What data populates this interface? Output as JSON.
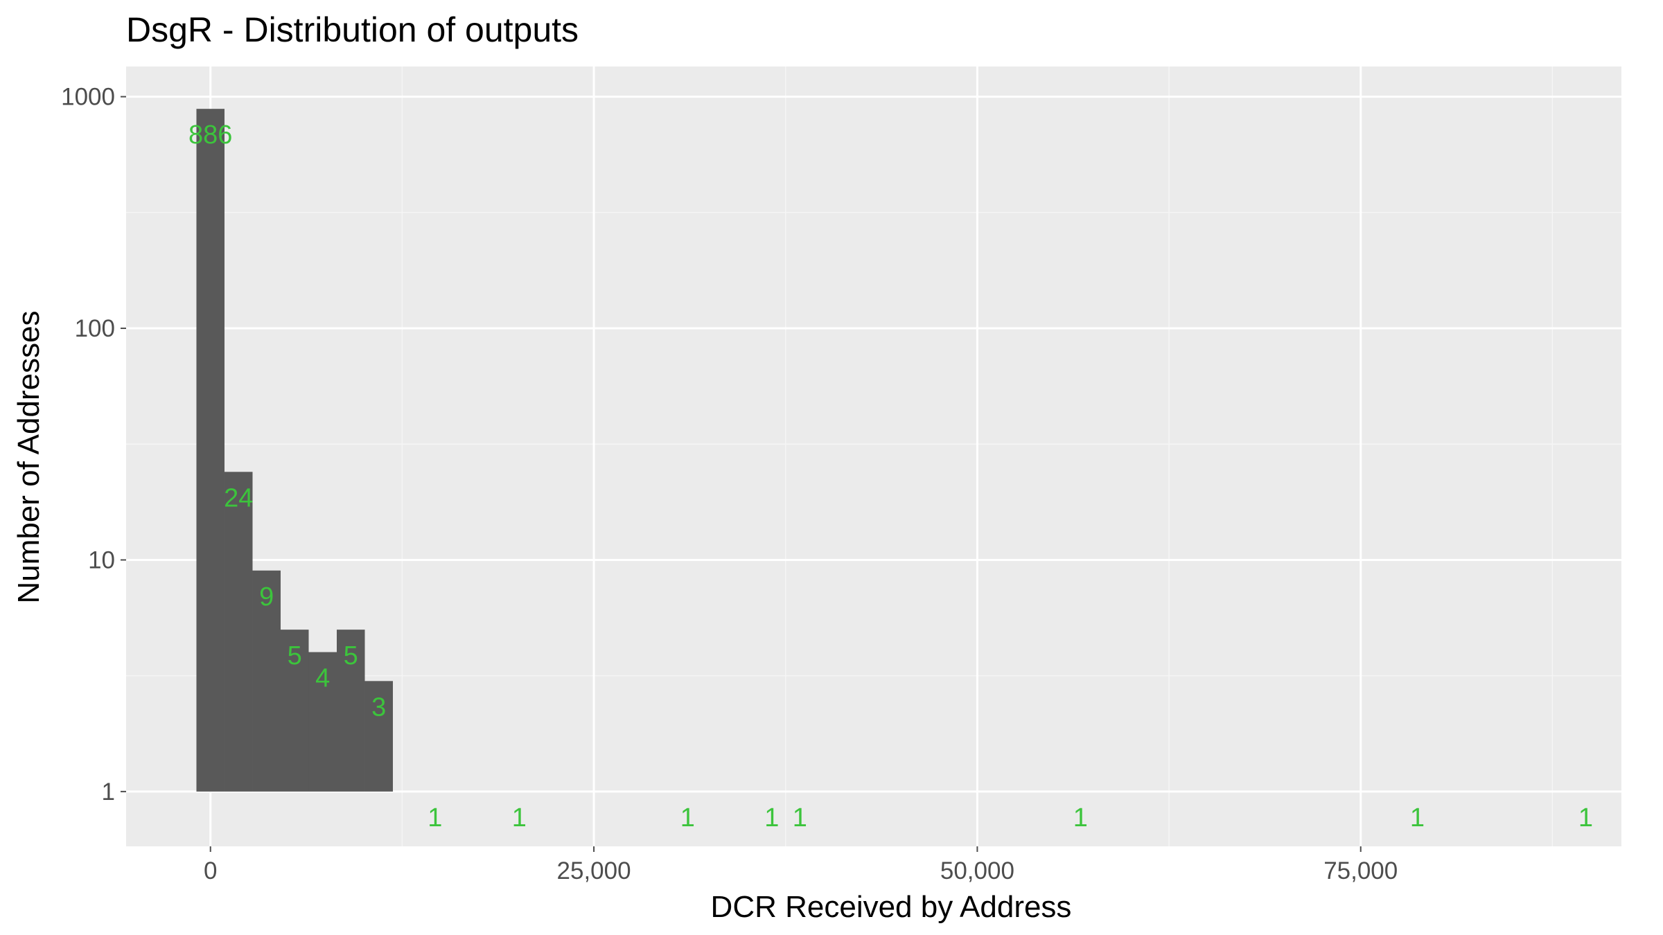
{
  "chart_data": {
    "type": "bar",
    "title": "DsgR - Distribution of outputs",
    "xlabel": "DCR Received by Address",
    "ylabel": "Number of Addresses",
    "y_scale": "log10",
    "xlim": [
      -5500,
      92000
    ],
    "ylim": [
      0.58,
      1350
    ],
    "x_ticks": [
      {
        "value": 0,
        "label": "0"
      },
      {
        "value": 25000,
        "label": "25,000"
      },
      {
        "value": 50000,
        "label": "50,000"
      },
      {
        "value": 75000,
        "label": "75,000"
      }
    ],
    "y_ticks": [
      {
        "value": 1,
        "label": "1"
      },
      {
        "value": 10,
        "label": "10"
      },
      {
        "value": 100,
        "label": "100"
      },
      {
        "value": 1000,
        "label": "1000"
      }
    ],
    "bin_width": 1830,
    "bins": [
      {
        "x": 0,
        "count": 886,
        "label": "886"
      },
      {
        "x": 1830,
        "count": 24,
        "label": "24"
      },
      {
        "x": 3660,
        "count": 9,
        "label": "9"
      },
      {
        "x": 5490,
        "count": 5,
        "label": "5"
      },
      {
        "x": 7320,
        "count": 4,
        "label": "4"
      },
      {
        "x": 9150,
        "count": 5,
        "label": "5"
      },
      {
        "x": 10980,
        "count": 3,
        "label": "3"
      },
      {
        "x": 14640,
        "count": 1,
        "label": "1"
      },
      {
        "x": 20130,
        "count": 1,
        "label": "1"
      },
      {
        "x": 31110,
        "count": 1,
        "label": "1"
      },
      {
        "x": 36600,
        "count": 1,
        "label": "1"
      },
      {
        "x": 38430,
        "count": 1,
        "label": "1"
      },
      {
        "x": 56730,
        "count": 1,
        "label": "1"
      },
      {
        "x": 78690,
        "count": 1,
        "label": "1"
      },
      {
        "x": 89670,
        "count": 1,
        "label": "1"
      }
    ],
    "grid": true,
    "colors": {
      "panel_background": "#ebebeb",
      "grid_major": "#ffffff",
      "grid_minor": "#f5f5f5",
      "bar_fill": "#595959",
      "label_color": "#3cc43c",
      "tick_color": "#4d4d4d"
    }
  }
}
